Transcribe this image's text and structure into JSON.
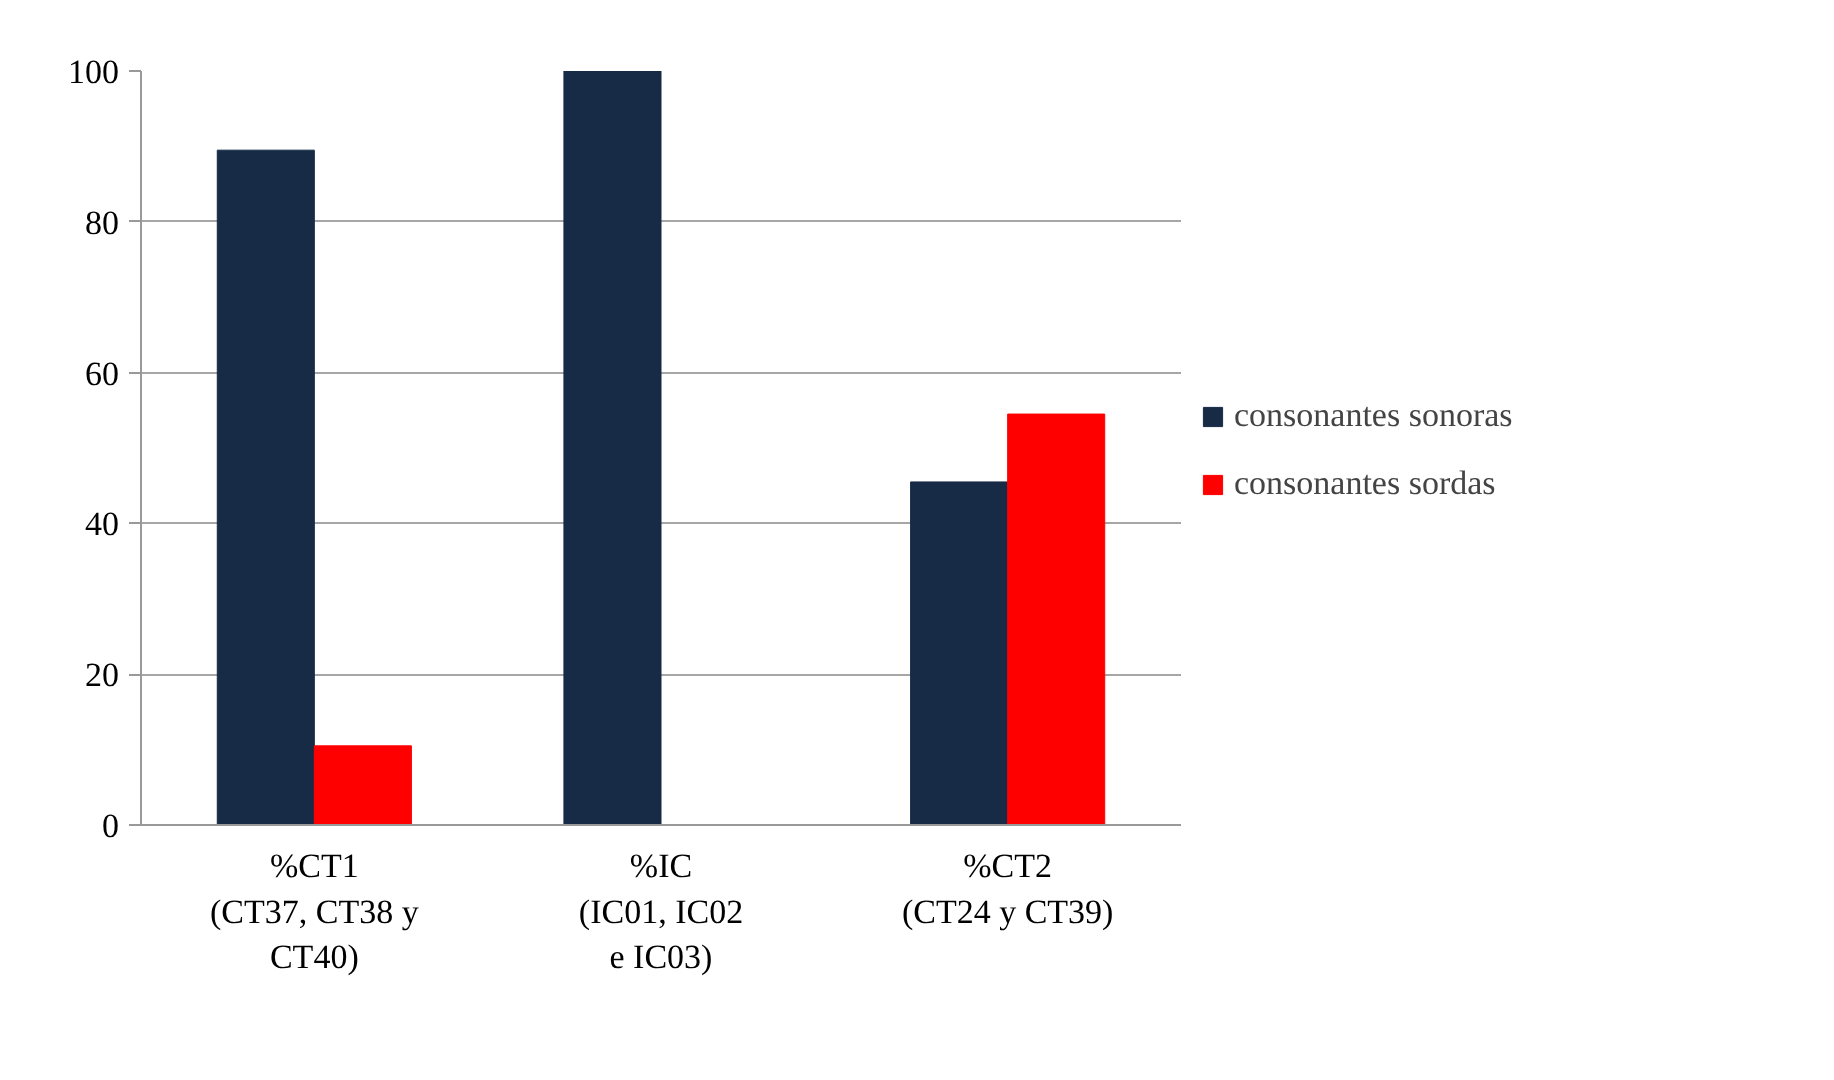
{
  "chart_data": {
    "type": "bar",
    "categories": [
      "%CT1\n(CT37, CT38 y\nCT40)",
      "%IC\n(IC01, IC02\ne IC03)",
      "%CT2\n(CT24 y CT39)"
    ],
    "series": [
      {
        "name": "consonantes sonoras",
        "color": "#172b47",
        "values": [
          89.5,
          100,
          45.5
        ]
      },
      {
        "name": "consonantes sordas",
        "color": "#ff0000",
        "values": [
          10.5,
          0,
          54.5
        ]
      }
    ],
    "ylim": [
      0,
      100
    ],
    "yticks": [
      0,
      20,
      40,
      60,
      80,
      100
    ],
    "grid": "y",
    "legend": "right"
  }
}
